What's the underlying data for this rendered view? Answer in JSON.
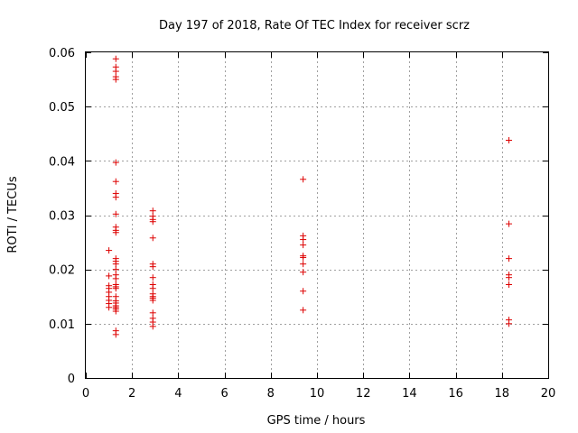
{
  "chart_data": {
    "type": "scatter",
    "title": "Day 197 of 2018, Rate Of TEC Index for receiver scrz",
    "xlabel": "GPS time / hours",
    "ylabel": "ROTI / TECUs",
    "xlim": [
      0,
      20
    ],
    "ylim": [
      0,
      0.06
    ],
    "xticks": [
      0,
      2,
      4,
      6,
      8,
      10,
      12,
      14,
      16,
      18,
      20
    ],
    "yticks": [
      0,
      0.01,
      0.02,
      0.03,
      0.04,
      0.05,
      0.06
    ],
    "xtick_labels": [
      "0",
      "2",
      "4",
      "6",
      "8",
      "10",
      "12",
      "14",
      "16",
      "18",
      "20"
    ],
    "ytick_labels": [
      "0",
      "0.01",
      "0.02",
      "0.03",
      "0.04",
      "0.05",
      "0.06"
    ],
    "grid": true,
    "marker": "+",
    "color": "#dd0000",
    "points": [
      [
        1.0,
        0.0235
      ],
      [
        1.0,
        0.0188
      ],
      [
        1.0,
        0.017
      ],
      [
        1.0,
        0.0165
      ],
      [
        1.0,
        0.0158
      ],
      [
        1.0,
        0.015
      ],
      [
        1.0,
        0.0143
      ],
      [
        1.0,
        0.0137
      ],
      [
        1.0,
        0.013
      ],
      [
        1.3,
        0.0588
      ],
      [
        1.3,
        0.0573
      ],
      [
        1.3,
        0.0565
      ],
      [
        1.3,
        0.0555
      ],
      [
        1.3,
        0.055
      ],
      [
        1.3,
        0.0397
      ],
      [
        1.3,
        0.0362
      ],
      [
        1.3,
        0.034
      ],
      [
        1.3,
        0.0333
      ],
      [
        1.3,
        0.0302
      ],
      [
        1.3,
        0.0278
      ],
      [
        1.3,
        0.0272
      ],
      [
        1.3,
        0.0268
      ],
      [
        1.3,
        0.022
      ],
      [
        1.3,
        0.0215
      ],
      [
        1.3,
        0.021
      ],
      [
        1.3,
        0.02
      ],
      [
        1.3,
        0.019
      ],
      [
        1.3,
        0.0183
      ],
      [
        1.3,
        0.0172
      ],
      [
        1.3,
        0.0168
      ],
      [
        1.3,
        0.0165
      ],
      [
        1.3,
        0.015
      ],
      [
        1.3,
        0.0142
      ],
      [
        1.3,
        0.0138
      ],
      [
        1.3,
        0.0133
      ],
      [
        1.3,
        0.013
      ],
      [
        1.3,
        0.0127
      ],
      [
        1.3,
        0.0123
      ],
      [
        1.3,
        0.0087
      ],
      [
        1.3,
        0.008
      ],
      [
        2.9,
        0.0308
      ],
      [
        2.9,
        0.0298
      ],
      [
        2.9,
        0.0292
      ],
      [
        2.9,
        0.0288
      ],
      [
        2.9,
        0.0258
      ],
      [
        2.9,
        0.021
      ],
      [
        2.9,
        0.0205
      ],
      [
        2.9,
        0.0185
      ],
      [
        2.9,
        0.0172
      ],
      [
        2.9,
        0.0165
      ],
      [
        2.9,
        0.0155
      ],
      [
        2.9,
        0.015
      ],
      [
        2.9,
        0.0147
      ],
      [
        2.9,
        0.0143
      ],
      [
        2.9,
        0.012
      ],
      [
        2.9,
        0.011
      ],
      [
        2.9,
        0.0103
      ],
      [
        2.9,
        0.0095
      ],
      [
        9.4,
        0.0366
      ],
      [
        9.4,
        0.0262
      ],
      [
        9.4,
        0.0255
      ],
      [
        9.4,
        0.0245
      ],
      [
        9.4,
        0.0225
      ],
      [
        9.4,
        0.0222
      ],
      [
        9.4,
        0.021
      ],
      [
        9.4,
        0.0195
      ],
      [
        9.4,
        0.016
      ],
      [
        9.4,
        0.0125
      ],
      [
        18.3,
        0.0438
      ],
      [
        18.3,
        0.0284
      ],
      [
        18.3,
        0.022
      ],
      [
        18.3,
        0.019
      ],
      [
        18.3,
        0.0185
      ],
      [
        18.3,
        0.0172
      ],
      [
        18.3,
        0.0107
      ],
      [
        18.3,
        0.01
      ]
    ]
  }
}
